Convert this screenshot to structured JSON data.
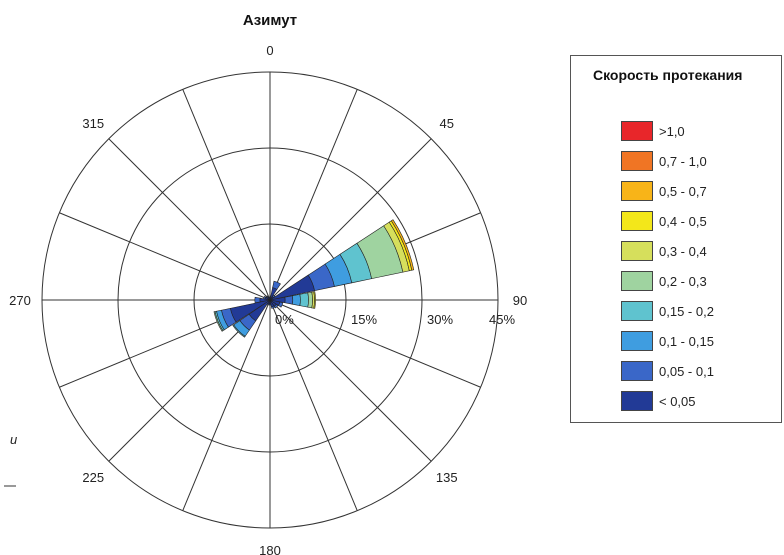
{
  "chart_data": {
    "type": "wind-rose",
    "title": "Азимут",
    "direction_labels": [
      "0",
      "45",
      "90",
      "135",
      "180",
      "225",
      "270",
      "315"
    ],
    "ring_labels": [
      "0%",
      "15%",
      "30%",
      "45%"
    ],
    "rlim": [
      0,
      45
    ],
    "sector_count": 16,
    "grid": true,
    "legend": {
      "title": "Скорость протекания",
      "placement": "right",
      "items": [
        {
          "label": ">1,0",
          "color": "#e8262a"
        },
        {
          "label": "0,7 - 1,0",
          "color": "#f07524"
        },
        {
          "label": "0,5 - 0,7",
          "color": "#f8b418"
        },
        {
          "label": "0,4 - 0,5",
          "color": "#f3e71a"
        },
        {
          "label": "0,3 - 0,4",
          "color": "#d6df5c"
        },
        {
          "label": "0,2 - 0,3",
          "color": "#9fd3a0"
        },
        {
          "label": "0,15 - 0,2",
          "color": "#5fc3cf"
        },
        {
          "label": "0,1 - 0,15",
          "color": "#3f9de0"
        },
        {
          "label": "0,05 - 0,1",
          "color": "#3a67c8"
        },
        {
          "label": "< 0,05",
          "color": "#223a96"
        }
      ]
    },
    "bin_colors": [
      "#223a96",
      "#3a67c8",
      "#3f9de0",
      "#5fc3cf",
      "#9fd3a0",
      "#d6df5c",
      "#f3e71a",
      "#f8b418"
    ],
    "series": [
      {
        "direction": 22.5,
        "values": [
          2.5,
          1.3
        ]
      },
      {
        "direction": 45,
        "values": [
          0.8,
          0.4
        ]
      },
      {
        "direction": 67.5,
        "values": [
          9,
          4,
          3.5,
          4,
          6.3,
          1.3,
          0.5,
          0.4
        ]
      },
      {
        "direction": 90,
        "values": [
          3,
          1.5,
          1.5,
          1.6,
          0.8,
          0.4,
          0.2
        ]
      },
      {
        "direction": 112.5,
        "values": [
          2,
          0.6
        ]
      },
      {
        "direction": 135,
        "values": [
          1.5,
          0.4
        ]
      },
      {
        "direction": 157.5,
        "values": [
          1.4,
          0.3
        ]
      },
      {
        "direction": 180,
        "values": [
          0.8,
          0.2
        ]
      },
      {
        "direction": 202.5,
        "values": [
          0.8,
          0.2
        ]
      },
      {
        "direction": 225,
        "values": [
          5,
          2.2,
          1.5,
          0.2
        ]
      },
      {
        "direction": 247.5,
        "values": [
          8,
          1.8,
          1,
          0.3,
          0.2
        ]
      },
      {
        "direction": 270,
        "values": [
          2,
          1
        ]
      },
      {
        "direction": 292.5,
        "values": [
          1,
          0.3
        ]
      },
      {
        "direction": 315,
        "values": [
          0.8,
          0.2
        ]
      },
      {
        "direction": 337.5,
        "values": [
          0.6
        ]
      },
      {
        "direction": 0,
        "values": [
          0.6
        ]
      }
    ]
  },
  "page_text": {
    "footnote_char": "и"
  }
}
